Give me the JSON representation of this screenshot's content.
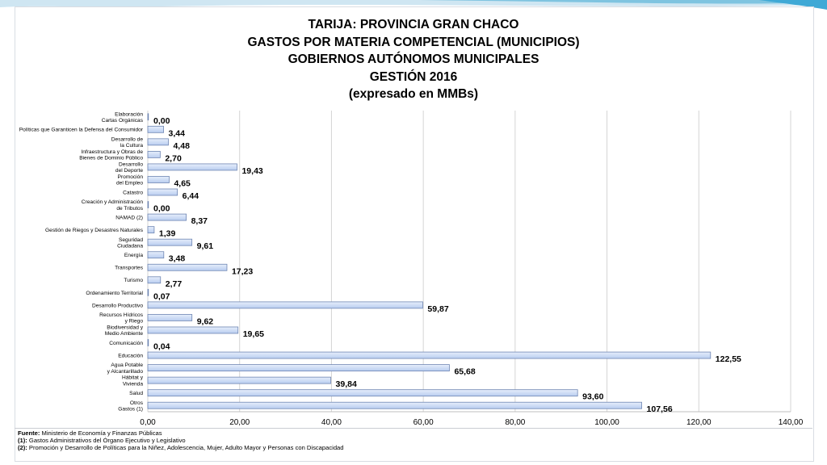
{
  "titles": [
    "TARIJA: PROVINCIA GRAN CHACO",
    "GASTOS POR MATERIA COMPETENCIAL (MUNICIPIOS)",
    "GOBIERNOS AUTÓNOMOS MUNICIPALES",
    "GESTIÓN 2016",
    "(expresado en MMBs)"
  ],
  "chart_data": {
    "type": "bar",
    "orientation": "horizontal",
    "categories": [
      "Elaboración\nCartas Orgánicas",
      "Políticas que Garanticen la Defensa del Consumidor",
      "Desarrollo de\nla Cultura",
      "Infraestructura y Obras de\nBienes de Dominio Público",
      "Desarrollo\ndel Deporte",
      "Promoción\ndel Empleo",
      "Catastro",
      "Creación y Administración\nde Tributos",
      "NAMAD (2)",
      "Gestión de Riegos y Desastres Naturales",
      "Seguridad\nCiudadana",
      "Energía",
      "Transportes",
      "Turismo",
      "Ordenamiento Territorial",
      "Desarrollo Productivo",
      "Recursos Hídricos\ny Riego",
      "Biodiversidad y\nMedio Ambiente",
      "Comunicación",
      "Educación",
      "Agua Potable\ny Alcantarillado",
      "Hábitat y\nVivienda",
      "Salud",
      "Otros\nGastos (1)"
    ],
    "values": [
      0.0,
      3.44,
      4.48,
      2.7,
      19.43,
      4.65,
      6.44,
      0.0,
      8.37,
      1.39,
      9.61,
      3.48,
      17.23,
      2.77,
      0.07,
      59.87,
      9.62,
      19.65,
      0.04,
      122.55,
      65.68,
      39.84,
      93.6,
      107.56
    ],
    "value_labels": [
      "0,00",
      "3,44",
      "4,48",
      "2,70",
      "19,43",
      "4,65",
      "6,44",
      "0,00",
      "8,37",
      "1,39",
      "9,61",
      "3,48",
      "17,23",
      "2,77",
      "0,07",
      "59,87",
      "9,62",
      "19,65",
      "0,04",
      "122,55",
      "65,68",
      "39,84",
      "93,60",
      "107,56"
    ],
    "xlim": [
      0,
      140
    ],
    "x_ticks": [
      0,
      20,
      40,
      60,
      80,
      100,
      120,
      140
    ],
    "x_tick_labels": [
      "0,00",
      "20,00",
      "40,00",
      "60,00",
      "80,00",
      "100,00",
      "120,00",
      "140,00"
    ],
    "grid": "vertical",
    "legend": "none",
    "colors": {
      "bar_fill_light": "#e6eefb",
      "bar_fill_dark": "#b9cdf0",
      "bar_stroke": "#6f86b3"
    }
  },
  "footnotes": [
    {
      "key": "Fuente:",
      "text": " Ministerio de Economía y Finanzas Públicas"
    },
    {
      "key": "(1):",
      "text": " Gastos Administrativos del Órgano Ejecutivo y Legislativo"
    },
    {
      "key": "(2):",
      "text": " Promoción y Desarrollo de Políticas para la Niñez, Adolescencia, Mujer, Adulto Mayor y Personas con Discapacidad"
    }
  ]
}
